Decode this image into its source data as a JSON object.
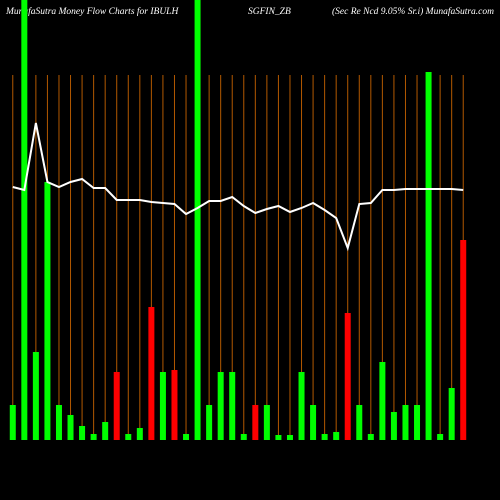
{
  "chart_data": {
    "type": "bar",
    "title_left": "MunafaSutra  Money Flow  Charts for IBULH",
    "title_center": "SGFIN_ZB",
    "title_right": "(Sec Re   Ncd 9.05% Sr.i) MunafaSutra.com",
    "categories": [
      null,
      null,
      null,
      null,
      null,
      null,
      null,
      null,
      null,
      null,
      null,
      null,
      null,
      null,
      null,
      null,
      null,
      null,
      null,
      null,
      null,
      null,
      null,
      null,
      null,
      null,
      null,
      null,
      null,
      null,
      null,
      null,
      null,
      null,
      null,
      null,
      null,
      null,
      null,
      null
    ],
    "values": [
      35,
      440,
      88,
      258,
      35,
      25,
      14,
      6,
      18,
      68,
      6,
      12,
      133,
      68,
      70,
      6,
      440,
      35,
      68,
      68,
      6,
      35,
      35,
      5,
      5,
      68,
      35,
      6,
      8,
      127,
      35,
      6,
      78,
      28,
      35,
      35,
      368,
      6,
      52,
      200
    ],
    "colors": [
      "#00ff00",
      "#00ff00",
      "#00ff00",
      "#00ff00",
      "#00ff00",
      "#00ff00",
      "#00ff00",
      "#00ff00",
      "#00ff00",
      "#ff0000",
      "#00ff00",
      "#00ff00",
      "#ff0000",
      "#00ff00",
      "#ff0000",
      "#00ff00",
      "#00ff00",
      "#00ff00",
      "#00ff00",
      "#00ff00",
      "#00ff00",
      "#ff0000",
      "#00ff00",
      "#00ff00",
      "#00ff00",
      "#00ff00",
      "#00ff00",
      "#00ff00",
      "#00ff00",
      "#ff0000",
      "#00ff00",
      "#00ff00",
      "#00ff00",
      "#00ff00",
      "#00ff00",
      "#00ff00",
      "#00ff00",
      "#00ff00",
      "#00ff00",
      "#ff0000"
    ],
    "line_values": [
      253,
      250,
      317,
      258,
      253,
      258,
      261,
      252,
      252,
      240,
      240,
      240,
      238,
      237,
      236,
      226,
      232,
      239,
      239,
      243,
      234,
      227,
      231,
      234,
      228,
      232,
      237,
      230,
      222,
      192,
      236,
      237,
      250,
      250,
      251,
      251,
      251,
      251,
      251,
      250
    ],
    "line_color": "#ffffff",
    "grid_color": "#b35900",
    "ylim": [
      0,
      440
    ]
  }
}
